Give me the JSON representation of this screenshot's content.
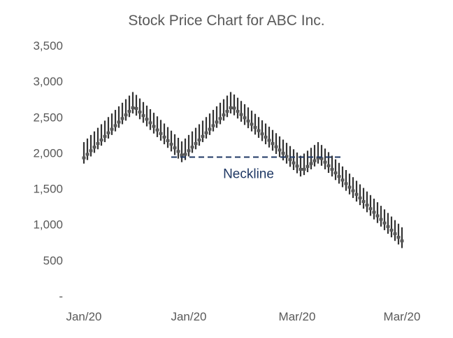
{
  "chart_data": {
    "type": "candlestick",
    "title": "Stock Price Chart for ABC Inc.",
    "xlabel": "",
    "ylabel": "",
    "ylim": [
      0,
      3500
    ],
    "yticks": [
      0,
      500,
      1000,
      1500,
      2000,
      2500,
      3000,
      3500
    ],
    "ytick_labels": [
      "-",
      "500",
      "1,000",
      "1,500",
      "2,000",
      "2,500",
      "3,000",
      "3,500"
    ],
    "xticks": [
      {
        "index": 0,
        "label": "Jan/20"
      },
      {
        "index": 30,
        "label": "Jan/20"
      },
      {
        "index": 61,
        "label": "Mar/20"
      },
      {
        "index": 91,
        "label": "Mar/20"
      }
    ],
    "grid": false,
    "legend": "none",
    "colors": {
      "wick": "#333333",
      "body": "#595959",
      "neckline": "#1f3864",
      "text": "#595959"
    },
    "ohlc_columns": [
      "open",
      "high",
      "low",
      "close"
    ],
    "ohlc": [
      [
        1910,
        2150,
        1850,
        1950
      ],
      [
        1960,
        2200,
        1900,
        2000
      ],
      [
        2010,
        2250,
        1950,
        2050
      ],
      [
        2060,
        2300,
        2000,
        2100
      ],
      [
        2110,
        2350,
        2050,
        2150
      ],
      [
        2160,
        2400,
        2100,
        2200
      ],
      [
        2210,
        2450,
        2150,
        2250
      ],
      [
        2260,
        2500,
        2200,
        2300
      ],
      [
        2310,
        2550,
        2250,
        2350
      ],
      [
        2360,
        2600,
        2300,
        2400
      ],
      [
        2410,
        2650,
        2350,
        2450
      ],
      [
        2460,
        2700,
        2400,
        2500
      ],
      [
        2510,
        2750,
        2450,
        2550
      ],
      [
        2560,
        2800,
        2500,
        2600
      ],
      [
        2610,
        2850,
        2550,
        2650
      ],
      [
        2640,
        2810,
        2520,
        2600
      ],
      [
        2590,
        2760,
        2470,
        2550
      ],
      [
        2540,
        2710,
        2420,
        2500
      ],
      [
        2490,
        2660,
        2370,
        2450
      ],
      [
        2440,
        2610,
        2320,
        2400
      ],
      [
        2390,
        2560,
        2270,
        2350
      ],
      [
        2340,
        2510,
        2220,
        2300
      ],
      [
        2290,
        2460,
        2170,
        2250
      ],
      [
        2240,
        2410,
        2120,
        2200
      ],
      [
        2190,
        2360,
        2070,
        2150
      ],
      [
        2140,
        2310,
        2020,
        2100
      ],
      [
        2090,
        2260,
        1970,
        2050
      ],
      [
        2040,
        2210,
        1920,
        2000
      ],
      [
        1990,
        2160,
        1870,
        1950
      ],
      [
        1960,
        2200,
        1900,
        2000
      ],
      [
        2010,
        2250,
        1950,
        2050
      ],
      [
        2060,
        2300,
        2000,
        2100
      ],
      [
        2110,
        2350,
        2050,
        2150
      ],
      [
        2160,
        2400,
        2100,
        2200
      ],
      [
        2210,
        2450,
        2150,
        2250
      ],
      [
        2260,
        2500,
        2200,
        2300
      ],
      [
        2310,
        2550,
        2250,
        2350
      ],
      [
        2360,
        2600,
        2300,
        2400
      ],
      [
        2410,
        2650,
        2350,
        2450
      ],
      [
        2460,
        2700,
        2400,
        2500
      ],
      [
        2510,
        2750,
        2450,
        2550
      ],
      [
        2560,
        2800,
        2500,
        2600
      ],
      [
        2610,
        2850,
        2550,
        2650
      ],
      [
        2645,
        2815,
        2525,
        2605
      ],
      [
        2600,
        2770,
        2480,
        2560
      ],
      [
        2555,
        2725,
        2435,
        2515
      ],
      [
        2510,
        2680,
        2390,
        2470
      ],
      [
        2465,
        2635,
        2345,
        2425
      ],
      [
        2420,
        2590,
        2300,
        2380
      ],
      [
        2375,
        2545,
        2255,
        2335
      ],
      [
        2330,
        2500,
        2210,
        2290
      ],
      [
        2285,
        2455,
        2165,
        2245
      ],
      [
        2240,
        2410,
        2120,
        2200
      ],
      [
        2195,
        2365,
        2075,
        2155
      ],
      [
        2150,
        2320,
        2030,
        2110
      ],
      [
        2105,
        2275,
        1985,
        2065
      ],
      [
        2060,
        2230,
        1940,
        2020
      ],
      [
        2015,
        2185,
        1895,
        1975
      ],
      [
        1970,
        2140,
        1850,
        1930
      ],
      [
        1925,
        2095,
        1805,
        1885
      ],
      [
        1880,
        2050,
        1760,
        1840
      ],
      [
        1835,
        2005,
        1715,
        1795
      ],
      [
        1790,
        1960,
        1670,
        1750
      ],
      [
        1750,
        1990,
        1690,
        1790
      ],
      [
        1790,
        2030,
        1730,
        1830
      ],
      [
        1830,
        2070,
        1770,
        1870
      ],
      [
        1870,
        2110,
        1810,
        1910
      ],
      [
        1910,
        2150,
        1850,
        1950
      ],
      [
        1940,
        2110,
        1820,
        1900
      ],
      [
        1890,
        2060,
        1770,
        1850
      ],
      [
        1840,
        2010,
        1720,
        1800
      ],
      [
        1790,
        1960,
        1670,
        1750
      ],
      [
        1740,
        1910,
        1620,
        1700
      ],
      [
        1690,
        1860,
        1570,
        1650
      ],
      [
        1640,
        1810,
        1520,
        1600
      ],
      [
        1590,
        1760,
        1470,
        1550
      ],
      [
        1540,
        1710,
        1420,
        1500
      ],
      [
        1490,
        1660,
        1370,
        1450
      ],
      [
        1440,
        1610,
        1320,
        1400
      ],
      [
        1390,
        1560,
        1270,
        1350
      ],
      [
        1340,
        1510,
        1220,
        1300
      ],
      [
        1290,
        1460,
        1170,
        1250
      ],
      [
        1240,
        1410,
        1120,
        1200
      ],
      [
        1190,
        1360,
        1070,
        1150
      ],
      [
        1140,
        1310,
        1020,
        1100
      ],
      [
        1090,
        1260,
        970,
        1050
      ],
      [
        1040,
        1210,
        920,
        1000
      ],
      [
        990,
        1160,
        870,
        950
      ],
      [
        940,
        1110,
        820,
        900
      ],
      [
        890,
        1060,
        770,
        850
      ],
      [
        840,
        1010,
        720,
        800
      ],
      [
        790,
        960,
        670,
        750
      ]
    ],
    "annotations": [
      {
        "type": "dashed-line",
        "label": "Neckline",
        "value": 1950,
        "from_index": 25,
        "to_index": 74
      }
    ]
  }
}
